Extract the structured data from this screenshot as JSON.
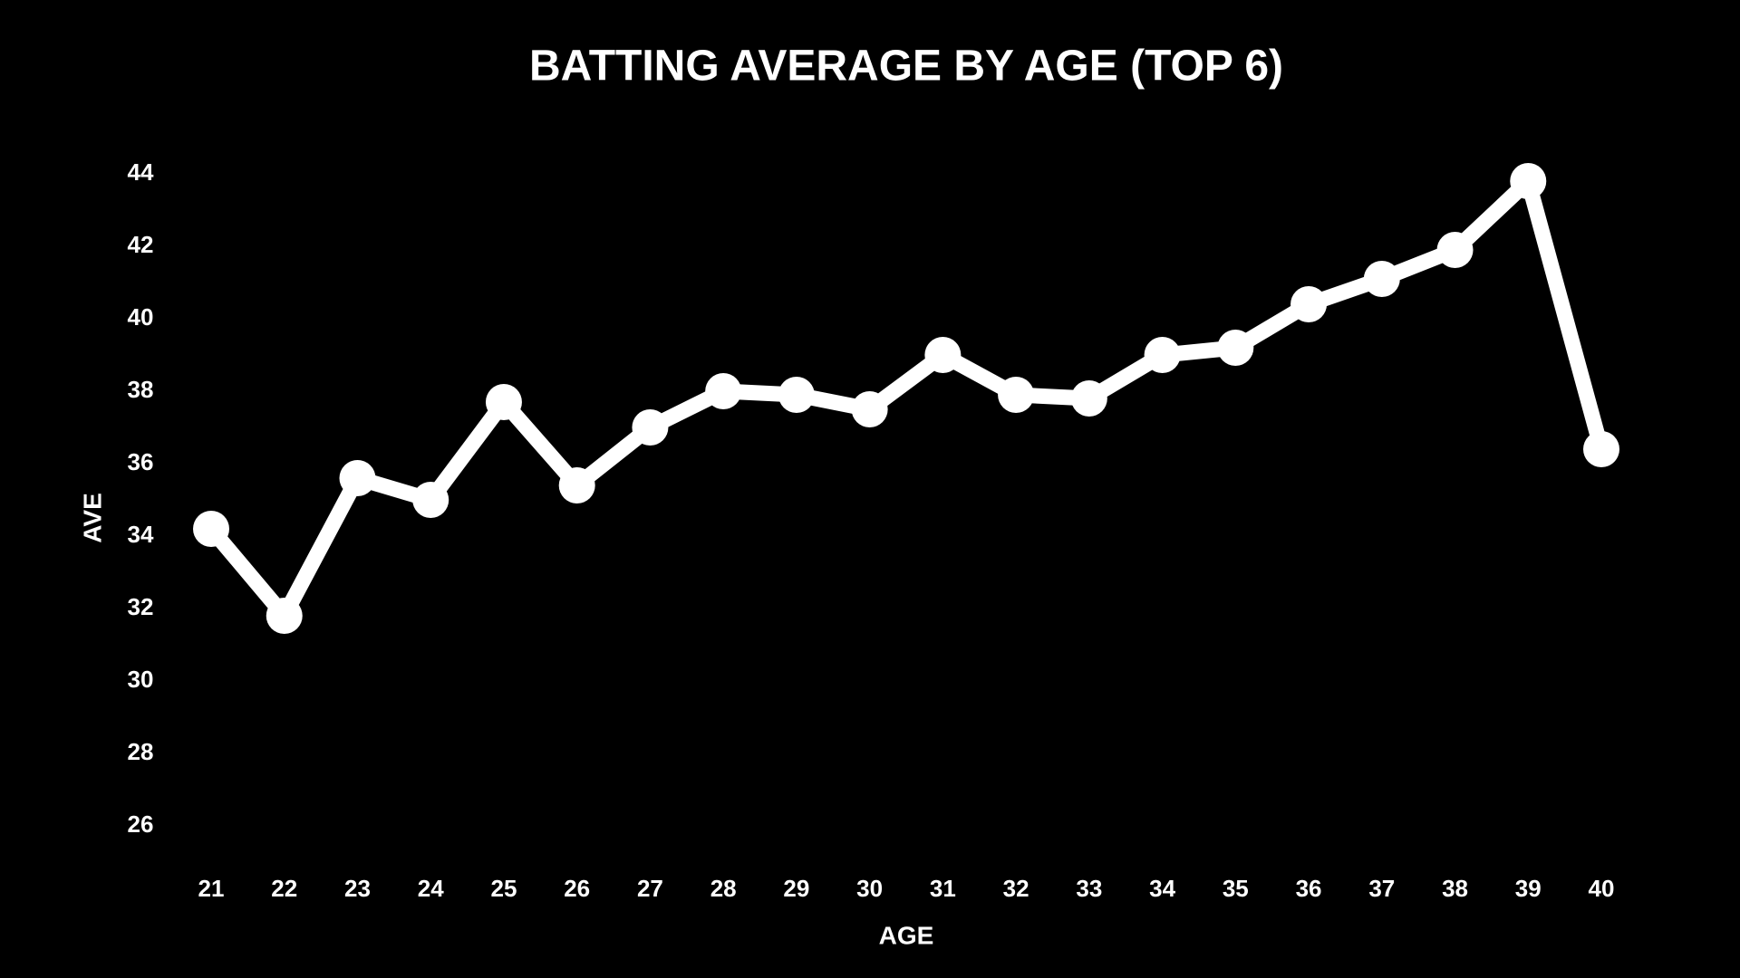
{
  "chart_data": {
    "type": "line",
    "title": "BATTING AVERAGE BY AGE (TOP 6)",
    "x_label": "AGE",
    "y_label": "AVE",
    "categories": [
      "21",
      "22",
      "23",
      "24",
      "25",
      "26",
      "27",
      "28",
      "29",
      "30",
      "31",
      "32",
      "33",
      "34",
      "35",
      "36",
      "37",
      "38",
      "39",
      "40"
    ],
    "series": [
      {
        "name": "AVE",
        "color": "#ffffff",
        "values": [
          34.2,
          31.8,
          35.6,
          35.0,
          37.7,
          35.4,
          37.0,
          38.0,
          37.9,
          37.5,
          39.0,
          37.9,
          37.8,
          39.0,
          39.2,
          40.4,
          41.1,
          41.9,
          43.8,
          36.4
        ]
      }
    ],
    "ylim": [
      25,
      44.5
    ],
    "yticks": [
      26,
      28,
      30,
      32,
      34,
      36,
      38,
      40,
      42,
      44
    ],
    "grid": false
  }
}
